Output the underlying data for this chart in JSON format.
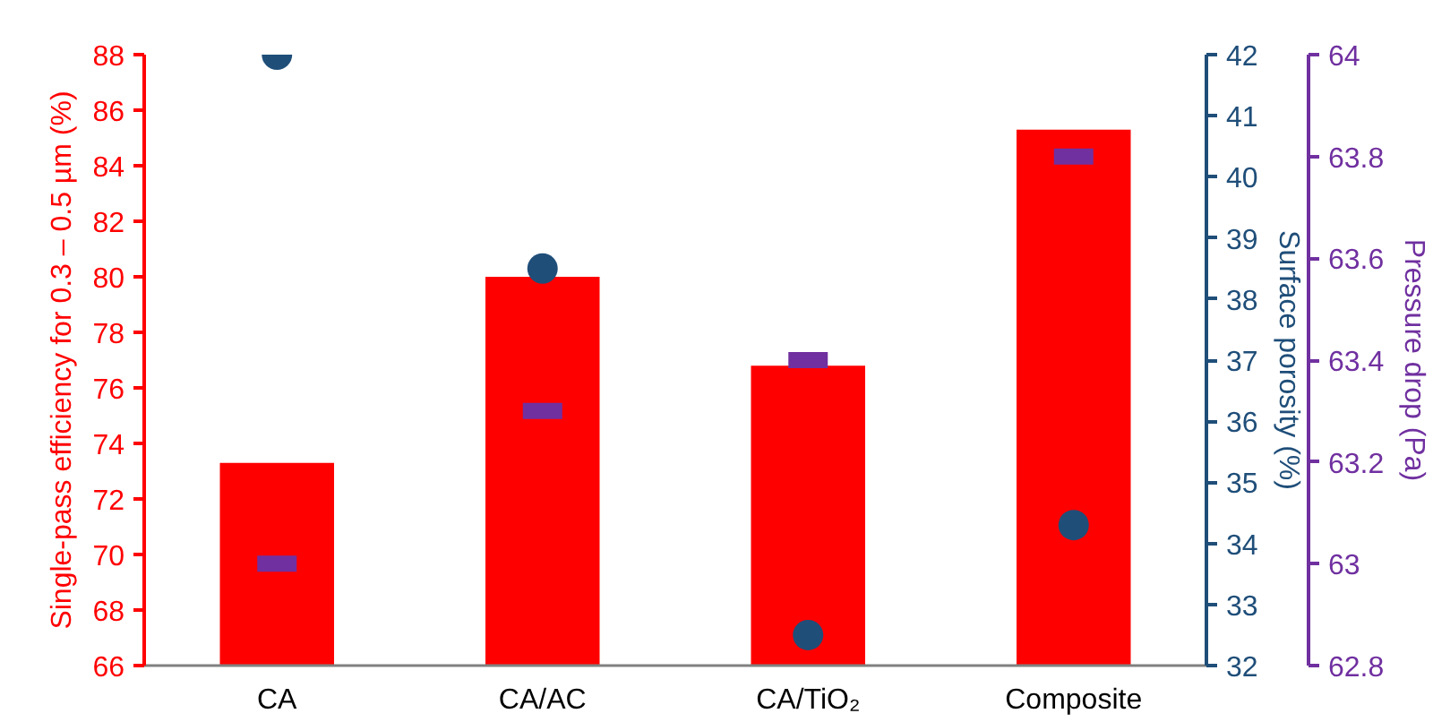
{
  "chart_data": {
    "type": "bar",
    "categories": [
      "CA",
      "CA/AC",
      "CA/TiO₂",
      "Composite"
    ],
    "ylabel": "Single-pass efficiency for 0.3 – 0.5 µm (%)",
    "y2label": "Surface porosity (%)",
    "y3label": "Pressure drop (Pa)",
    "ylim": [
      66,
      88
    ],
    "yticks": [
      66,
      68,
      70,
      72,
      74,
      76,
      78,
      80,
      82,
      84,
      86,
      88
    ],
    "y2lim": [
      32,
      42
    ],
    "y2ticks": [
      32,
      33,
      34,
      35,
      36,
      37,
      38,
      39,
      40,
      41,
      42
    ],
    "y3lim": [
      62.8,
      64
    ],
    "y3ticks": [
      62.8,
      63,
      63.2,
      63.4,
      63.6,
      63.8,
      64
    ],
    "grid": false,
    "series": [
      {
        "color": "#ff0000",
        "values": [
          73.3,
          80.0,
          76.8,
          85.3
        ]
      },
      {
        "type": "scatter",
        "axis": "y2",
        "marker": "circle",
        "color": "#1f4e79",
        "values": [
          42.0,
          38.5,
          32.5,
          34.3
        ]
      },
      {
        "type": "scatter",
        "axis": "y3",
        "marker": "square",
        "color": "#7030a0",
        "values": [
          63.0,
          63.3,
          63.4,
          63.8
        ]
      }
    ]
  }
}
